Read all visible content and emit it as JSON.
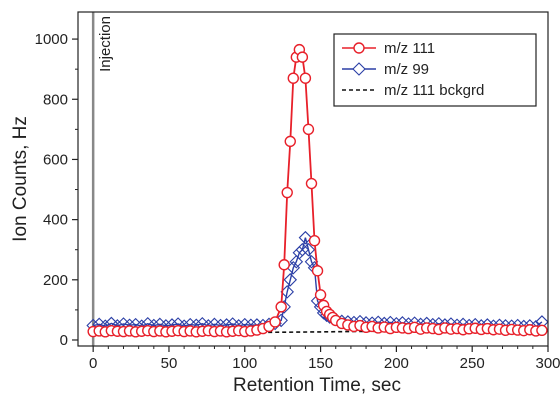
{
  "chart_data": {
    "type": "line",
    "xlabel": "Retention Time, sec",
    "ylabel": "Ion Counts, Hz",
    "xlim": [
      -10,
      300
    ],
    "ylim": [
      -20,
      1090
    ],
    "x_ticks": [
      "0",
      "50",
      "100",
      "150",
      "200",
      "250",
      "300"
    ],
    "y_ticks": [
      "0",
      "200",
      "400",
      "600",
      "800",
      "1000"
    ],
    "grid": false,
    "legend_position": "top-right",
    "annotations": [
      {
        "text": "Injection",
        "x": 0
      }
    ],
    "colors": {
      "m111": "#e8202a",
      "m99": "#2b3fa6",
      "background": "#111111",
      "injection": "#888888"
    },
    "series": [
      {
        "name": "m/z 111",
        "marker": "circle",
        "x": [
          0,
          4,
          8,
          12,
          16,
          20,
          24,
          28,
          32,
          36,
          40,
          44,
          48,
          52,
          56,
          60,
          64,
          68,
          72,
          76,
          80,
          84,
          88,
          92,
          96,
          100,
          104,
          108,
          112,
          116,
          120,
          124,
          126,
          128,
          130,
          132,
          134,
          136,
          138,
          140,
          142,
          144,
          146,
          148,
          150,
          152,
          154,
          156,
          158,
          160,
          164,
          168,
          172,
          176,
          180,
          184,
          188,
          192,
          196,
          200,
          204,
          208,
          212,
          216,
          220,
          224,
          228,
          232,
          236,
          240,
          244,
          248,
          252,
          256,
          260,
          264,
          268,
          272,
          276,
          280,
          284,
          288,
          292,
          296
        ],
        "values": [
          28,
          30,
          27,
          31,
          29,
          28,
          30,
          27,
          29,
          31,
          28,
          30,
          27,
          29,
          31,
          28,
          30,
          27,
          29,
          31,
          28,
          30,
          27,
          29,
          31,
          28,
          30,
          33,
          38,
          45,
          60,
          110,
          250,
          490,
          660,
          870,
          940,
          965,
          940,
          870,
          700,
          520,
          330,
          230,
          150,
          115,
          95,
          85,
          75,
          65,
          55,
          50,
          45,
          48,
          42,
          45,
          40,
          43,
          38,
          42,
          40,
          38,
          42,
          36,
          40,
          38,
          35,
          40,
          36,
          38,
          34,
          37,
          39,
          35,
          38,
          34,
          36,
          32,
          35,
          33,
          31,
          34,
          30,
          32
        ]
      },
      {
        "name": "m/z 99",
        "marker": "diamond",
        "x": [
          0,
          4,
          8,
          12,
          16,
          20,
          24,
          28,
          32,
          36,
          40,
          44,
          48,
          52,
          56,
          60,
          64,
          68,
          72,
          76,
          80,
          84,
          88,
          92,
          96,
          100,
          104,
          108,
          112,
          116,
          120,
          124,
          126,
          128,
          130,
          132,
          134,
          136,
          138,
          140,
          142,
          144,
          146,
          148,
          150,
          152,
          154,
          156,
          158,
          160,
          164,
          168,
          172,
          176,
          180,
          184,
          188,
          192,
          196,
          200,
          204,
          208,
          212,
          216,
          220,
          224,
          228,
          232,
          236,
          240,
          244,
          248,
          252,
          256,
          260,
          264,
          268,
          272,
          276,
          280,
          284,
          288,
          292,
          296
        ],
        "values": [
          48,
          52,
          46,
          55,
          47,
          53,
          49,
          51,
          46,
          54,
          48,
          52,
          47,
          50,
          53,
          46,
          51,
          49,
          54,
          47,
          52,
          48,
          50,
          53,
          47,
          51,
          49,
          50,
          48,
          52,
          55,
          65,
          110,
          160,
          200,
          240,
          260,
          290,
          300,
          340,
          300,
          260,
          240,
          130,
          110,
          90,
          82,
          76,
          72,
          68,
          62,
          60,
          58,
          61,
          57,
          56,
          59,
          55,
          58,
          54,
          57,
          53,
          56,
          52,
          55,
          51,
          54,
          50,
          53,
          49,
          52,
          48,
          51,
          47,
          50,
          46,
          49,
          47,
          46,
          48,
          45,
          47,
          44,
          60
        ]
      },
      {
        "name": "m/z 111 bckgrd",
        "marker": "none",
        "dashed": true,
        "x": [
          0,
          50,
          100,
          150,
          200,
          250,
          300
        ],
        "values": [
          22,
          23,
          25,
          27,
          30,
          33,
          36
        ]
      }
    ]
  }
}
